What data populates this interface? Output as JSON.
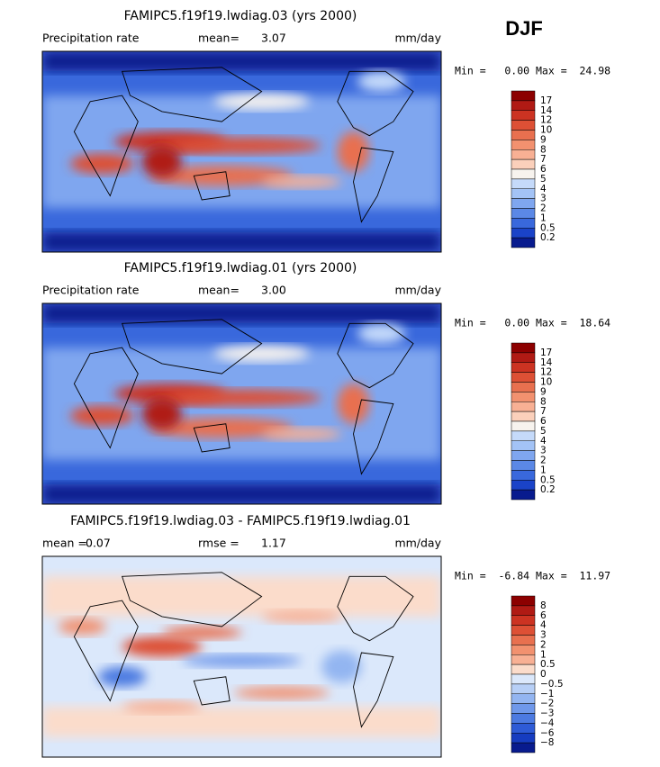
{
  "header": {
    "season": "DJF"
  },
  "panels": [
    {
      "title": "FAMIPC5.f19f19.lwdiag.03 (yrs 2000)",
      "left_label": "Precipitation rate",
      "stats": [
        {
          "label": "mean=",
          "value": "3.07"
        }
      ],
      "units": "mm/day",
      "range": "Min =   0.00 Max =  24.98",
      "kind": "precip",
      "colorbar": {
        "labels": [
          "17",
          "14",
          "12",
          "10",
          "9",
          "8",
          "7",
          "6",
          "5",
          "4",
          "3",
          "2",
          "1",
          "0.5",
          "0.2"
        ],
        "colors": [
          "#8c0000",
          "#b01a14",
          "#cc3322",
          "#dd5035",
          "#e8704f",
          "#f2916f",
          "#f8b094",
          "#fbd0bb",
          "#f7f3ee",
          "#c5dafa",
          "#a3c3f6",
          "#7fa6ef",
          "#5b88e6",
          "#3968dc",
          "#1a43c8",
          "#081b8e"
        ]
      }
    },
    {
      "title": "FAMIPC5.f19f19.lwdiag.01 (yrs 2000)",
      "left_label": "Precipitation rate",
      "stats": [
        {
          "label": "mean=",
          "value": "3.00"
        }
      ],
      "units": "mm/day",
      "range": "Min =   0.00 Max =  18.64",
      "kind": "precip",
      "colorbar": {
        "labels": [
          "17",
          "14",
          "12",
          "10",
          "9",
          "8",
          "7",
          "6",
          "5",
          "4",
          "3",
          "2",
          "1",
          "0.5",
          "0.2"
        ],
        "colors": [
          "#8c0000",
          "#b01a14",
          "#cc3322",
          "#dd5035",
          "#e8704f",
          "#f2916f",
          "#f8b094",
          "#fbd0bb",
          "#f7f3ee",
          "#c5dafa",
          "#a3c3f6",
          "#7fa6ef",
          "#5b88e6",
          "#3968dc",
          "#1a43c8",
          "#081b8e"
        ]
      }
    },
    {
      "title": "FAMIPC5.f19f19.lwdiag.03 - FAMIPC5.f19f19.lwdiag.01",
      "stats": [
        {
          "label": "mean =",
          "value": "0.07"
        },
        {
          "label": "rmse =",
          "value": "1.17"
        }
      ],
      "units": "mm/day",
      "range": "Min =  -6.84 Max =  11.97",
      "kind": "diff",
      "colorbar": {
        "labels": [
          "8",
          "6",
          "4",
          "3",
          "2",
          "1",
          "0.5",
          "0",
          "−0.5",
          "−1",
          "−2",
          "−3",
          "−4",
          "−6",
          "−8"
        ],
        "colors": [
          "#8c0000",
          "#b01a14",
          "#cc3322",
          "#dd5035",
          "#e8704f",
          "#f2916f",
          "#f8b094",
          "#fbdccb",
          "#dbe8fb",
          "#b7cff6",
          "#93b5f1",
          "#6f98ea",
          "#4c7ae1",
          "#2e5bd6",
          "#163cc0",
          "#081b8e"
        ]
      }
    }
  ]
}
